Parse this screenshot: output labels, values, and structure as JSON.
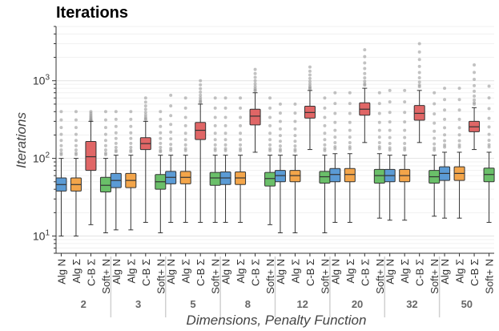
{
  "chart_data": {
    "type": "box",
    "title": "Iterations",
    "xlabel": "Dimensions, Penalty Function",
    "ylabel": "Iterations",
    "yscale": "log",
    "ylim": [
      6,
      5000
    ],
    "y_ticks": [
      {
        "value": 10,
        "base": "10",
        "exp": "1"
      },
      {
        "value": 100,
        "base": "10",
        "exp": "2"
      },
      {
        "value": 1000,
        "base": "10",
        "exp": "3"
      }
    ],
    "groups": [
      "2",
      "3",
      "5",
      "8",
      "12",
      "20",
      "32",
      "50"
    ],
    "series": [
      {
        "name": "Alg N",
        "color": "#5b9bd5"
      },
      {
        "name": "Alg Σ",
        "color": "#f3a54a"
      },
      {
        "name": "C-B Σ",
        "color": "#e06666"
      },
      {
        "name": "Soft+ N",
        "color": "#6abf69"
      }
    ],
    "grid": true,
    "legend": "none",
    "boxes": [
      {
        "group": "2",
        "series": "Alg N",
        "whisker_low": 10,
        "q1": 38,
        "median": 46,
        "q3": 56,
        "whisker_high": 100,
        "outlier_max": 400
      },
      {
        "group": "2",
        "series": "Alg Σ",
        "whisker_low": 10,
        "q1": 38,
        "median": 46,
        "q3": 56,
        "whisker_high": 100,
        "outlier_max": 400
      },
      {
        "group": "2",
        "series": "C-B Σ",
        "whisker_low": 14,
        "q1": 70,
        "median": 105,
        "q3": 165,
        "whisker_high": 300,
        "outlier_max": 400
      },
      {
        "group": "2",
        "series": "Soft+ N",
        "whisker_low": 11,
        "q1": 37,
        "median": 45,
        "q3": 57,
        "whisker_high": 100,
        "outlier_max": 400
      },
      {
        "group": "3",
        "series": "Alg N",
        "whisker_low": 12,
        "q1": 42,
        "median": 52,
        "q3": 64,
        "whisker_high": 110,
        "outlier_max": 400
      },
      {
        "group": "3",
        "series": "Alg Σ",
        "whisker_low": 12,
        "q1": 42,
        "median": 52,
        "q3": 64,
        "whisker_high": 110,
        "outlier_max": 400
      },
      {
        "group": "3",
        "series": "C-B Σ",
        "whisker_low": 15,
        "q1": 130,
        "median": 155,
        "q3": 185,
        "whisker_high": 300,
        "outlier_max": 600
      },
      {
        "group": "3",
        "series": "Soft+ N",
        "whisker_low": 11,
        "q1": 40,
        "median": 50,
        "q3": 62,
        "whisker_high": 110,
        "outlier_max": 400
      },
      {
        "group": "5",
        "series": "Alg N",
        "whisker_low": 15,
        "q1": 47,
        "median": 57,
        "q3": 68,
        "whisker_high": 110,
        "outlier_max": 650
      },
      {
        "group": "5",
        "series": "Alg Σ",
        "whisker_low": 15,
        "q1": 47,
        "median": 57,
        "q3": 68,
        "whisker_high": 110,
        "outlier_max": 600
      },
      {
        "group": "5",
        "series": "C-B Σ",
        "whisker_low": 15,
        "q1": 175,
        "median": 230,
        "q3": 290,
        "whisker_high": 500,
        "outlier_max": 1000
      },
      {
        "group": "5",
        "series": "Soft+ N",
        "whisker_low": 15,
        "q1": 45,
        "median": 56,
        "q3": 66,
        "whisker_high": 110,
        "outlier_max": 600
      },
      {
        "group": "8",
        "series": "Alg N",
        "whisker_low": 15,
        "q1": 46,
        "median": 56,
        "q3": 67,
        "whisker_high": 110,
        "outlier_max": 600
      },
      {
        "group": "8",
        "series": "Alg Σ",
        "whisker_low": 15,
        "q1": 46,
        "median": 56,
        "q3": 67,
        "whisker_high": 110,
        "outlier_max": 600
      },
      {
        "group": "8",
        "series": "C-B Σ",
        "whisker_low": 120,
        "q1": 270,
        "median": 350,
        "q3": 430,
        "whisker_high": 700,
        "outlier_max": 1400
      },
      {
        "group": "8",
        "series": "Soft+ N",
        "whisker_low": 14,
        "q1": 44,
        "median": 55,
        "q3": 66,
        "whisker_high": 110,
        "outlier_max": 600
      },
      {
        "group": "12",
        "series": "Alg N",
        "whisker_low": 11,
        "q1": 50,
        "median": 60,
        "q3": 70,
        "whisker_high": 110,
        "outlier_max": 500
      },
      {
        "group": "12",
        "series": "Alg Σ",
        "whisker_low": 11,
        "q1": 50,
        "median": 60,
        "q3": 70,
        "whisker_high": 110,
        "outlier_max": 500
      },
      {
        "group": "12",
        "series": "C-B Σ",
        "whisker_low": 130,
        "q1": 330,
        "median": 390,
        "q3": 470,
        "whisker_high": 750,
        "outlier_max": 1500
      },
      {
        "group": "12",
        "series": "Soft+ N",
        "whisker_low": 11,
        "q1": 48,
        "median": 58,
        "q3": 68,
        "whisker_high": 110,
        "outlier_max": 600
      },
      {
        "group": "20",
        "series": "Alg N",
        "whisker_low": 15,
        "q1": 50,
        "median": 62,
        "q3": 74,
        "whisker_high": 115,
        "outlier_max": 700
      },
      {
        "group": "20",
        "series": "Alg Σ",
        "whisker_low": 15,
        "q1": 50,
        "median": 62,
        "q3": 74,
        "whisker_high": 115,
        "outlier_max": 700
      },
      {
        "group": "20",
        "series": "C-B Σ",
        "whisker_low": 160,
        "q1": 360,
        "median": 430,
        "q3": 520,
        "whisker_high": 800,
        "outlier_max": 2500
      },
      {
        "group": "20",
        "series": "Soft+ N",
        "whisker_low": 17,
        "q1": 48,
        "median": 60,
        "q3": 72,
        "whisker_high": 115,
        "outlier_max": 700
      },
      {
        "group": "32",
        "series": "Alg N",
        "whisker_low": 16,
        "q1": 50,
        "median": 60,
        "q3": 72,
        "whisker_high": 110,
        "outlier_max": 750
      },
      {
        "group": "32",
        "series": "Alg Σ",
        "whisker_low": 16,
        "q1": 50,
        "median": 60,
        "q3": 72,
        "whisker_high": 110,
        "outlier_max": 750
      },
      {
        "group": "32",
        "series": "C-B Σ",
        "whisker_low": 160,
        "q1": 310,
        "median": 380,
        "q3": 480,
        "whisker_high": 750,
        "outlier_max": 3000
      },
      {
        "group": "32",
        "series": "Soft+ N",
        "whisker_low": 18,
        "q1": 48,
        "median": 58,
        "q3": 70,
        "whisker_high": 110,
        "outlier_max": 700
      },
      {
        "group": "50",
        "series": "Alg N",
        "whisker_low": 17,
        "q1": 52,
        "median": 64,
        "q3": 78,
        "whisker_high": 120,
        "outlier_max": 800
      },
      {
        "group": "50",
        "series": "Alg Σ",
        "whisker_low": 17,
        "q1": 52,
        "median": 64,
        "q3": 78,
        "whisker_high": 120,
        "outlier_max": 800
      },
      {
        "group": "50",
        "series": "C-B Σ",
        "whisker_low": 130,
        "q1": 220,
        "median": 255,
        "q3": 300,
        "whisker_high": 450,
        "outlier_max": 1600
      },
      {
        "group": "50",
        "series": "Soft+ N",
        "whisker_low": 15,
        "q1": 50,
        "median": 62,
        "q3": 75,
        "whisker_high": 120,
        "outlier_max": 850
      }
    ]
  }
}
